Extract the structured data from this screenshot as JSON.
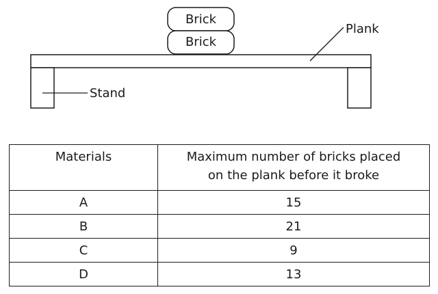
{
  "diagram": {
    "brick_top_label": "Brick",
    "brick_bottom_label": "Brick",
    "plank_label": "Plank",
    "stand_label": "Stand"
  },
  "table": {
    "header_materials": "Materials",
    "header_bricks_line1": "Maximum number of bricks placed",
    "header_bricks_line2": "on the plank before it broke",
    "rows": [
      {
        "material": "A",
        "bricks": "15"
      },
      {
        "material": "B",
        "bricks": "21"
      },
      {
        "material": "C",
        "bricks": "9"
      },
      {
        "material": "D",
        "bricks": "13"
      }
    ]
  }
}
